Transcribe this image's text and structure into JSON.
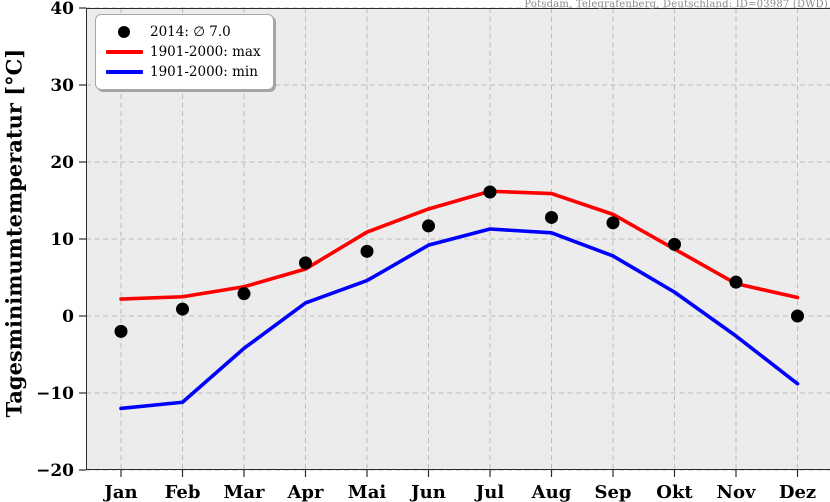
{
  "header": {
    "station_label": "Potsdam, Telegrafenberg, Deutschland: ID=03987 (DWD)"
  },
  "chart_data": {
    "type": "line",
    "title": "",
    "xlabel": "",
    "ylabel": "Tagesminimumtemperatur [°C]",
    "categories": [
      "Jan",
      "Feb",
      "Mar",
      "Apr",
      "Mai",
      "Jun",
      "Jul",
      "Aug",
      "Sep",
      "Okt",
      "Nov",
      "Dez"
    ],
    "ylim": [
      -20,
      40
    ],
    "yticks": [
      {
        "value": 40,
        "label": "40"
      },
      {
        "value": 30,
        "label": "30"
      },
      {
        "value": 20,
        "label": "20"
      },
      {
        "value": 10,
        "label": "10"
      },
      {
        "value": 0,
        "label": "0"
      },
      {
        "value": -10,
        "label": "−10"
      },
      {
        "value": -20,
        "label": "−20"
      }
    ],
    "grid": true,
    "legend_position": "upper-left",
    "series": [
      {
        "key": "avg-2014",
        "name": "2014: ∅ 7.0",
        "style": "scatter",
        "color": "#000000",
        "values": [
          -2.0,
          0.9,
          2.9,
          6.9,
          8.4,
          11.7,
          16.1,
          12.8,
          12.1,
          9.3,
          4.4,
          0.0
        ]
      },
      {
        "key": "max-1901-2000",
        "name": "1901-2000: max",
        "style": "line",
        "color": "#ff0000",
        "values": [
          2.2,
          2.5,
          3.8,
          6.1,
          10.9,
          13.9,
          16.2,
          15.9,
          13.2,
          8.7,
          4.2,
          2.4
        ]
      },
      {
        "key": "min-1901-2000",
        "name": "1901-2000: min",
        "style": "line",
        "color": "#0000ff",
        "values": [
          -12.0,
          -11.2,
          -4.2,
          1.7,
          4.6,
          9.2,
          11.3,
          10.8,
          7.8,
          3.1,
          -2.6,
          -8.8
        ]
      }
    ],
    "colors": {
      "plot_bg": "#ececec",
      "grid": "#bdbdbd",
      "spine": "#2b2b2b",
      "station_text": "#8a8a8a"
    }
  }
}
